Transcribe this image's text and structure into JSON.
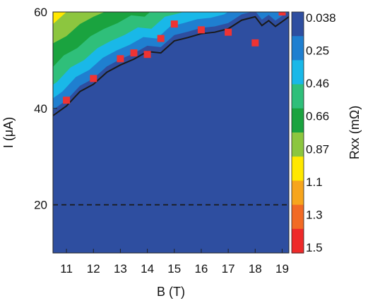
{
  "chart_data": {
    "type": "heatmap",
    "xlabel": "B (T)",
    "ylabel": "I (μA)",
    "colorbar_label": "Rxx (mΩ)",
    "xlim": [
      10.5,
      19.25
    ],
    "ylim": [
      10,
      60
    ],
    "xticks": [
      "11",
      "12",
      "13",
      "14",
      "15",
      "16",
      "17",
      "18",
      "19"
    ],
    "yticks": [
      "20",
      "40",
      "60"
    ],
    "colorbar_ticks": [
      "0.038",
      "0.25",
      "0.46",
      "0.66",
      "0.87",
      "1.1",
      "1.3",
      "1.5"
    ],
    "colormap": [
      "#2e4ea0",
      "#1f7fd0",
      "#19b8e8",
      "#2fbf7a",
      "#1aa33f",
      "#8cc63f",
      "#ffe800",
      "#f7a51c",
      "#f26a24",
      "#ee2a2a"
    ],
    "critical_current_line": {
      "x": [
        10.5,
        11.0,
        11.5,
        12.0,
        12.5,
        13.0,
        13.5,
        14.0,
        14.5,
        15.0,
        15.5,
        16.0,
        16.5,
        17.0,
        17.5,
        18.0,
        18.25,
        18.5,
        18.75,
        19.0,
        19.25
      ],
      "y": [
        38.5,
        40.5,
        43.5,
        45.0,
        47.5,
        49.0,
        50.2,
        51.8,
        51.5,
        54.0,
        54.7,
        55.5,
        55.8,
        56.5,
        58.3,
        59.0,
        57.2,
        58.2,
        57.0,
        58.0,
        59.0
      ]
    },
    "threshold_line": {
      "y": 20,
      "style": "dashed"
    },
    "markers": {
      "x": [
        11.0,
        12.0,
        13.0,
        13.5,
        14.0,
        14.5,
        15.0,
        16.0,
        17.0,
        18.0,
        19.0
      ],
      "y": [
        41.7,
        46.2,
        50.3,
        51.5,
        51.2,
        54.5,
        57.5,
        56.3,
        55.8,
        53.6,
        60.0
      ],
      "color": "#ee3333"
    },
    "grid": false
  }
}
